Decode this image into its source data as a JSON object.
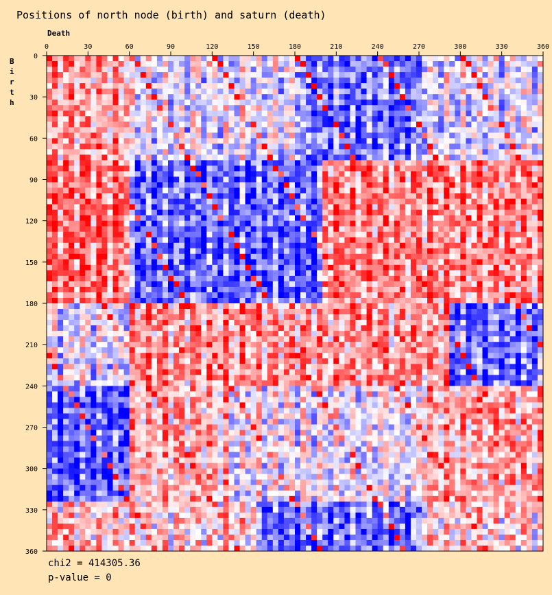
{
  "chart_data": {
    "type": "heatmap",
    "title": "Positions of north node (birth) and saturn (death)",
    "xlabel": "Death",
    "ylabel": "Birth",
    "x_ticks": [
      0,
      30,
      60,
      90,
      120,
      150,
      180,
      210,
      240,
      270,
      300,
      330,
      360
    ],
    "y_ticks": [
      0,
      30,
      60,
      90,
      120,
      150,
      180,
      210,
      240,
      270,
      300,
      330,
      360
    ],
    "xlim": [
      0,
      360
    ],
    "ylim": [
      0,
      360
    ],
    "x_axis_position": "top",
    "y_axis_direction": "downward",
    "color_scale": {
      "low": "#0000ff",
      "mid": "#ffffff",
      "high": "#ff0000"
    },
    "stats": {
      "chi2_label": "chi2 = 414305.36",
      "pvalue_label": "p-value = 0"
    }
  }
}
